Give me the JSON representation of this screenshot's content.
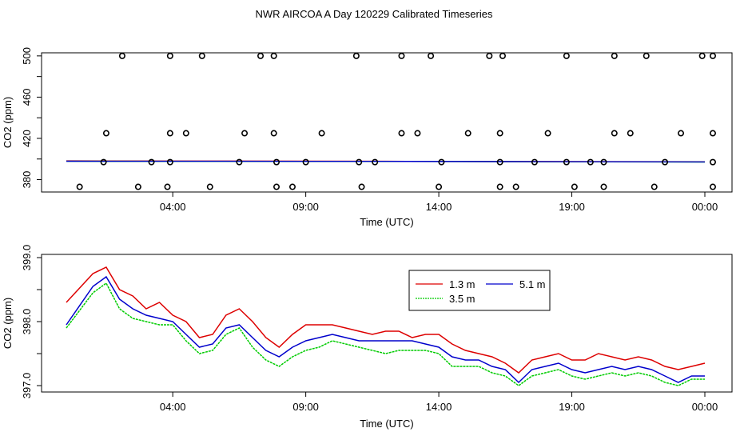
{
  "page_title": "NWR AIRCOA A  Day 120229  Calibrated Timeseries",
  "colors": {
    "red": "#dd0000",
    "green": "#00cc00",
    "blue": "#0000cc",
    "axis": "#000000"
  },
  "chart_data": [
    {
      "type": "scatter",
      "xlabel": "Time (UTC)",
      "ylabel": "CO2 (ppm)",
      "xlim": [
        0,
        24
      ],
      "ylim": [
        368,
        503
      ],
      "x_ticks": [
        4,
        9,
        14,
        19,
        24
      ],
      "x_tick_labels": [
        "04:00",
        "09:00",
        "14:00",
        "19:00",
        "00:00"
      ],
      "y_ticks": [
        380,
        420,
        460,
        500
      ],
      "y_tick_labels": [
        "380",
        "420",
        "460",
        "500"
      ],
      "y_minor_ticks": [
        400,
        440,
        480
      ],
      "points_500": [
        2.1,
        3.9,
        5.1,
        7.3,
        7.8,
        10.9,
        12.6,
        13.7,
        15.9,
        16.4,
        18.8,
        20.6,
        21.8,
        23.9,
        24.3
      ],
      "points_425": [
        1.5,
        3.9,
        4.5,
        6.7,
        7.8,
        9.6,
        12.6,
        13.2,
        15.1,
        16.3,
        18.1,
        20.6,
        21.2,
        23.1,
        24.3
      ],
      "points_373": [
        0.5,
        2.7,
        3.8,
        5.4,
        7.9,
        8.5,
        11.1,
        14.0,
        16.3,
        16.9,
        19.1,
        20.2,
        22.1,
        24.3
      ],
      "series": [
        {
          "name": "1.3 m",
          "color_key": "red",
          "x": [
            0,
            6,
            12,
            18,
            24
          ],
          "y": [
            398.2,
            398.0,
            397.8,
            397.5,
            397.3
          ]
        },
        {
          "name": "3.5 m",
          "color_key": "green",
          "x": [
            0,
            6,
            12,
            18,
            24
          ],
          "y": [
            397.8,
            397.7,
            397.6,
            397.3,
            397.1
          ]
        },
        {
          "name": "5.1 m",
          "color_key": "blue",
          "x": [
            0,
            6,
            12,
            18,
            24
          ],
          "y": [
            397.9,
            397.8,
            397.7,
            397.4,
            397.2
          ]
        }
      ]
    },
    {
      "type": "line",
      "xlabel": "Time (UTC)",
      "ylabel": "CO2 (ppm)",
      "xlim": [
        0,
        24
      ],
      "ylim": [
        396.9,
        399.05
      ],
      "x_ticks": [
        4,
        9,
        14,
        19,
        24
      ],
      "x_tick_labels": [
        "04:00",
        "09:00",
        "14:00",
        "19:00",
        "00:00"
      ],
      "y_ticks": [
        397.0,
        398.0,
        399.0
      ],
      "y_tick_labels": [
        "397.0",
        "398.0",
        "399.0"
      ],
      "y_minor_ticks": [
        397.5,
        398.5
      ],
      "x": [
        0,
        1,
        1.5,
        2,
        2.5,
        3,
        3.5,
        4,
        4.5,
        5,
        5.5,
        6,
        6.5,
        7,
        7.5,
        8,
        8.5,
        9,
        9.5,
        10,
        10.5,
        11,
        11.5,
        12,
        12.5,
        13,
        13.5,
        14,
        14.5,
        15,
        15.5,
        16,
        16.5,
        17,
        17.5,
        18,
        18.5,
        19,
        19.5,
        20,
        20.5,
        21,
        21.5,
        22,
        22.5,
        23,
        23.5,
        24
      ],
      "series": [
        {
          "name": "1.3 m",
          "color_key": "red",
          "values": [
            398.3,
            398.75,
            398.85,
            398.5,
            398.4,
            398.2,
            398.3,
            398.1,
            398.0,
            397.75,
            397.8,
            398.1,
            398.2,
            398.0,
            397.75,
            397.6,
            397.8,
            397.95,
            397.95,
            397.95,
            397.9,
            397.85,
            397.8,
            397.85,
            397.85,
            397.75,
            397.8,
            397.8,
            397.65,
            397.55,
            397.5,
            397.45,
            397.35,
            397.2,
            397.4,
            397.45,
            397.5,
            397.4,
            397.4,
            397.5,
            397.45,
            397.4,
            397.45,
            397.4,
            397.3,
            397.25,
            397.3,
            397.35
          ]
        },
        {
          "name": "3.5 m",
          "color_key": "green",
          "values": [
            397.9,
            398.45,
            398.6,
            398.2,
            398.05,
            398.0,
            397.95,
            397.95,
            397.7,
            397.5,
            397.55,
            397.8,
            397.9,
            397.6,
            397.4,
            397.3,
            397.45,
            397.55,
            397.6,
            397.7,
            397.65,
            397.6,
            397.55,
            397.5,
            397.55,
            397.55,
            397.55,
            397.5,
            397.3,
            397.3,
            397.3,
            397.2,
            397.15,
            397.0,
            397.15,
            397.2,
            397.25,
            397.15,
            397.1,
            397.15,
            397.2,
            397.15,
            397.2,
            397.15,
            397.05,
            397.0,
            397.1,
            397.1
          ]
        },
        {
          "name": "5.1 m",
          "color_key": "blue",
          "values": [
            397.95,
            398.55,
            398.7,
            398.35,
            398.2,
            398.1,
            398.05,
            398.0,
            397.8,
            397.6,
            397.65,
            397.9,
            397.95,
            397.75,
            397.55,
            397.45,
            397.6,
            397.7,
            397.75,
            397.8,
            397.75,
            397.7,
            397.7,
            397.7,
            397.7,
            397.7,
            397.65,
            397.6,
            397.45,
            397.4,
            397.4,
            397.3,
            397.25,
            397.05,
            397.25,
            397.3,
            397.35,
            397.25,
            397.2,
            397.25,
            397.3,
            397.25,
            397.3,
            397.25,
            397.15,
            397.05,
            397.15,
            397.15
          ]
        }
      ],
      "legend": {
        "entries": [
          "1.3 m",
          "5.1 m",
          "3.5 m"
        ]
      }
    }
  ]
}
